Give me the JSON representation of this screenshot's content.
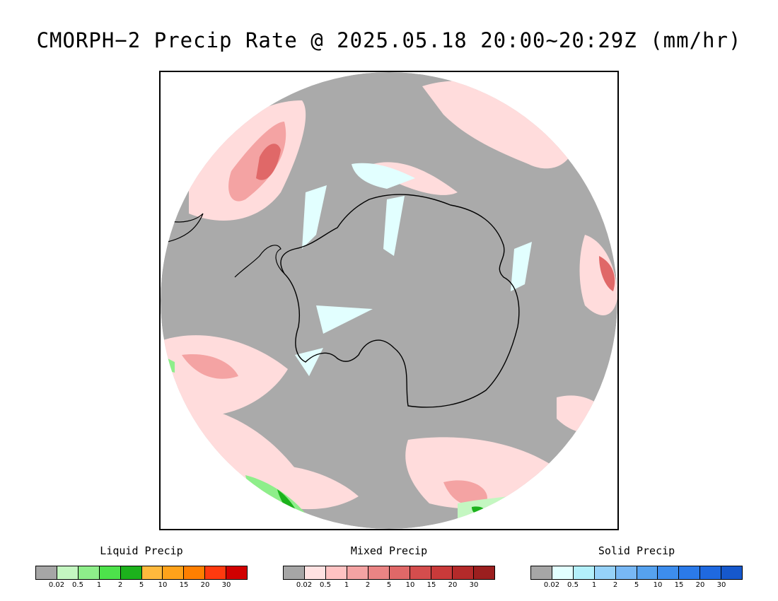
{
  "title": "CMORPH−2 Precip Rate @ 2025.05.18 20:00~20:29Z (mm/hr)",
  "map": {
    "projection": "south-polar-stereographic",
    "background_color": "#aaaaaa",
    "coastline_color": "#000000"
  },
  "legends": [
    {
      "id": "liquid",
      "title": "Liquid Precip",
      "colors": [
        "#a6a6a6",
        "#c4f7c1",
        "#8eee8a",
        "#4de24b",
        "#1cb21c",
        "#ffb93d",
        "#ffa21a",
        "#ff7f00",
        "#ff3a0f",
        "#d10000"
      ],
      "tick_labels": [
        "0.02",
        "0.5",
        "1",
        "2",
        "5",
        "10",
        "15",
        "20",
        "30"
      ]
    },
    {
      "id": "mixed",
      "title": "Mixed Precip",
      "colors": [
        "#a6a6a6",
        "#ffe2e2",
        "#ffc3c3",
        "#f4a3a3",
        "#ea8484",
        "#e06868",
        "#d44d4d",
        "#c93a3a",
        "#b42a2a",
        "#9b1f1f"
      ],
      "tick_labels": [
        "0.02",
        "0.5",
        "1",
        "2",
        "5",
        "10",
        "15",
        "20",
        "30"
      ]
    },
    {
      "id": "solid",
      "title": "Solid Precip",
      "colors": [
        "#a6a6a6",
        "#e2ffff",
        "#b3f0fb",
        "#96d2f9",
        "#78b8f5",
        "#56a2ef",
        "#3d8ded",
        "#2b7ae9",
        "#1f69e0",
        "#1658cc"
      ],
      "tick_labels": [
        "0.02",
        "0.5",
        "1",
        "2",
        "5",
        "10",
        "15",
        "20",
        "30"
      ]
    }
  ]
}
